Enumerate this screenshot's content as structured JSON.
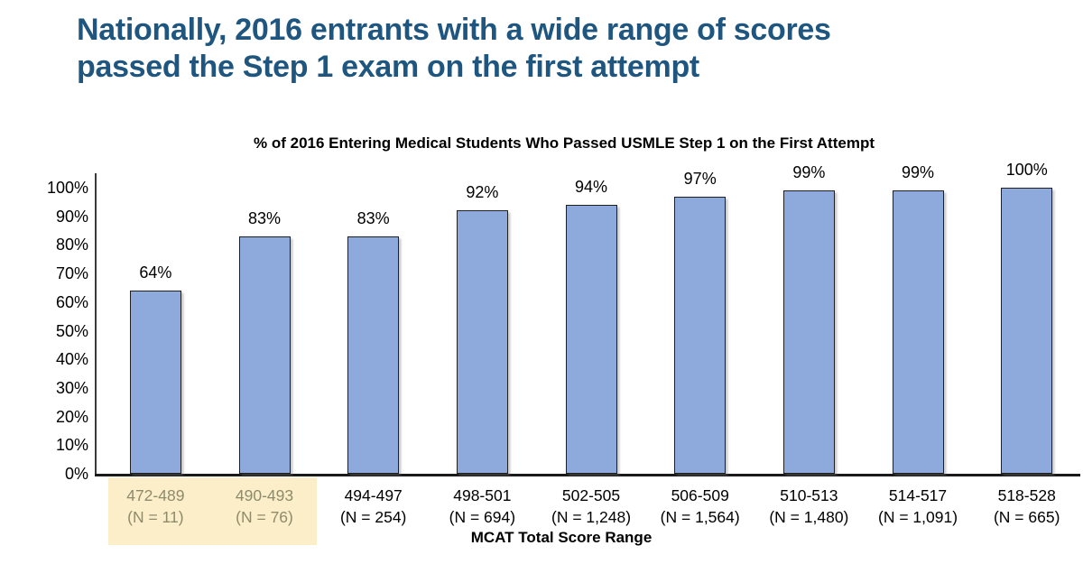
{
  "slide": {
    "title_lines": [
      "Nationally, 2016 entrants with a wide range of scores",
      "passed the Step 1 exam on the first attempt"
    ],
    "title_color": "#1F5680",
    "background": "#FFFFFF"
  },
  "chart_data": {
    "type": "bar",
    "title": "% of 2016 Entering Medical Students Who Passed USMLE Step 1 on the First Attempt",
    "xlabel": "MCAT Total Score Range",
    "ylabel": "",
    "ylim": [
      0,
      100
    ],
    "grid": false,
    "legend": "none",
    "y_ticks": [
      {
        "value": 100,
        "label": "100%"
      },
      {
        "value": 90,
        "label": "90%"
      },
      {
        "value": 80,
        "label": "80%"
      },
      {
        "value": 70,
        "label": "70%"
      },
      {
        "value": 60,
        "label": "60%"
      },
      {
        "value": 50,
        "label": "50%"
      },
      {
        "value": 40,
        "label": "40%"
      },
      {
        "value": 30,
        "label": "30%"
      },
      {
        "value": 20,
        "label": "20%"
      },
      {
        "value": 10,
        "label": "10%"
      },
      {
        "value": 0,
        "label": "0%"
      }
    ],
    "categories": [
      "472-489",
      "490-493",
      "494-497",
      "498-501",
      "502-505",
      "506-509",
      "510-513",
      "514-517",
      "518-528"
    ],
    "n_labels": [
      "(N = 11)",
      "(N = 76)",
      "(N = 254)",
      "(N = 694)",
      "(N = 1,248)",
      "(N = 1,564)",
      "(N = 1,480)",
      "(N = 1,091)",
      "(N = 665)"
    ],
    "values": [
      64,
      83,
      83,
      92,
      94,
      97,
      99,
      99,
      100
    ],
    "value_labels": [
      "64%",
      "83%",
      "83%",
      "92%",
      "94%",
      "97%",
      "99%",
      "99%",
      "100%"
    ],
    "highlighted_count": 2,
    "colors": {
      "bar_fill": "#8EA9DB",
      "bar_border": "#1F1F1F",
      "axis_line": "#262626",
      "highlight_bg": "#FBEEC8",
      "highlight_text": "#8E8B6D",
      "label_text": "#000000"
    }
  }
}
